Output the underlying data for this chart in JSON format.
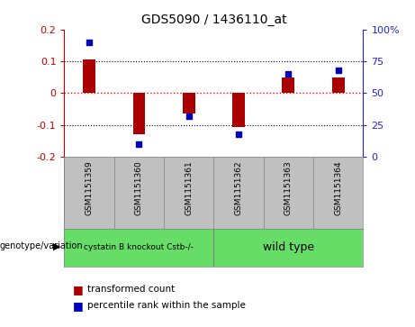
{
  "title": "GDS5090 / 1436110_at",
  "samples": [
    "GSM1151359",
    "GSM1151360",
    "GSM1151361",
    "GSM1151362",
    "GSM1151363",
    "GSM1151364"
  ],
  "bar_values": [
    0.105,
    -0.13,
    -0.065,
    -0.105,
    0.05,
    0.05
  ],
  "dot_values_pct": [
    90,
    10,
    32,
    18,
    65,
    68
  ],
  "ylim_left": [
    -0.2,
    0.2
  ],
  "ylim_right": [
    0,
    100
  ],
  "yticks_left": [
    -0.2,
    -0.1,
    0.0,
    0.1,
    0.2
  ],
  "yticks_right": [
    0,
    25,
    50,
    75,
    100
  ],
  "group1_label": "cystatin B knockout Cstb-/-",
  "group2_label": "wild type",
  "group1_indices": [
    0,
    1,
    2
  ],
  "group2_indices": [
    3,
    4,
    5
  ],
  "bar_color": "#AA0000",
  "dot_color": "#0000BB",
  "group1_bg": "#66DD66",
  "group2_bg": "#66DD66",
  "sample_bg": "#C0C0C0",
  "plot_bg": "#FFFFFF",
  "legend_bar_label": "transformed count",
  "legend_dot_label": "percentile rank within the sample",
  "genotype_label": "genotype/variation",
  "left_axis_color": "#CC0000",
  "right_axis_color": "#2222CC",
  "bar_width": 0.25
}
